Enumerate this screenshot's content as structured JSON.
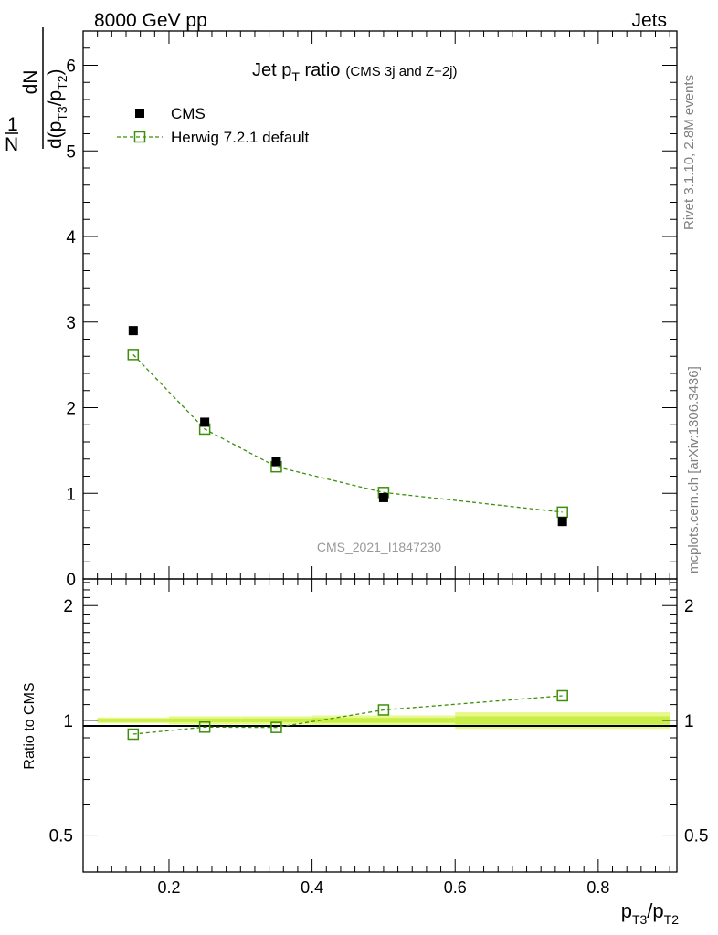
{
  "header": {
    "left": "8000 GeV pp",
    "right": "Jets"
  },
  "side_text": {
    "rivet": "Rivet 3.1.10,  2.8M events",
    "mcplots": "mcplots.cern.ch [arXiv:1306.3436]"
  },
  "watermark": "CMS_2021_I1847230",
  "title": {
    "main": "Jet p",
    "main_sub": "T",
    "main_after": " ratio",
    "small": "(CMS 3j and Z+2j)"
  },
  "y_label_top": {
    "one": "1",
    "N": "N",
    "dN": "dN",
    "d": "d(p",
    "s1": "T3",
    "slash": "/p",
    "s2": "T2",
    "close": ")"
  },
  "y_label_bottom": "Ratio to CMS",
  "x_label": {
    "p1": "p",
    "s1": "T3",
    "p2": "/p",
    "s2": "T2"
  },
  "legend": {
    "cms": "CMS",
    "herwig": "Herwig 7.2.1 default"
  },
  "colors": {
    "data": "#000000",
    "mc": "#3d8f0a",
    "band_outer": "#e8f88a",
    "band_inner": "#c8ee4a"
  },
  "chart_data": [
    {
      "type": "scatter",
      "panel": "main",
      "xlim": [
        0.08,
        0.91
      ],
      "ylim": [
        0,
        6.4
      ],
      "y_ticks": [
        0,
        1,
        2,
        3,
        4,
        5,
        6
      ],
      "series": [
        {
          "name": "CMS",
          "x": [
            0.15,
            0.25,
            0.35,
            0.5,
            0.75
          ],
          "y": [
            2.9,
            1.83,
            1.37,
            0.95,
            0.67
          ]
        },
        {
          "name": "Herwig 7.2.1 default",
          "x": [
            0.15,
            0.25,
            0.35,
            0.5,
            0.75
          ],
          "y": [
            2.62,
            1.75,
            1.31,
            1.01,
            0.78
          ]
        }
      ]
    },
    {
      "type": "line",
      "panel": "ratio",
      "xlim": [
        0.08,
        0.91
      ],
      "ylim": [
        0.4,
        2.35
      ],
      "y_ticks": [
        0.5,
        1,
        2
      ],
      "x_ticks": [
        0.2,
        0.4,
        0.6,
        0.8
      ],
      "x": [
        0.15,
        0.25,
        0.35,
        0.5,
        0.75
      ],
      "series": [
        {
          "name": "Herwig 7.2.1 default",
          "values": [
            0.92,
            0.96,
            0.958,
            1.065,
            1.16
          ]
        }
      ],
      "band": {
        "edges": [
          0.1,
          0.2,
          0.3,
          0.4,
          0.6,
          0.9
        ],
        "outer": [
          0.018,
          0.025,
          0.025,
          0.03,
          0.05
        ],
        "inner": [
          0.01,
          0.012,
          0.012,
          0.015,
          0.025
        ]
      }
    }
  ]
}
